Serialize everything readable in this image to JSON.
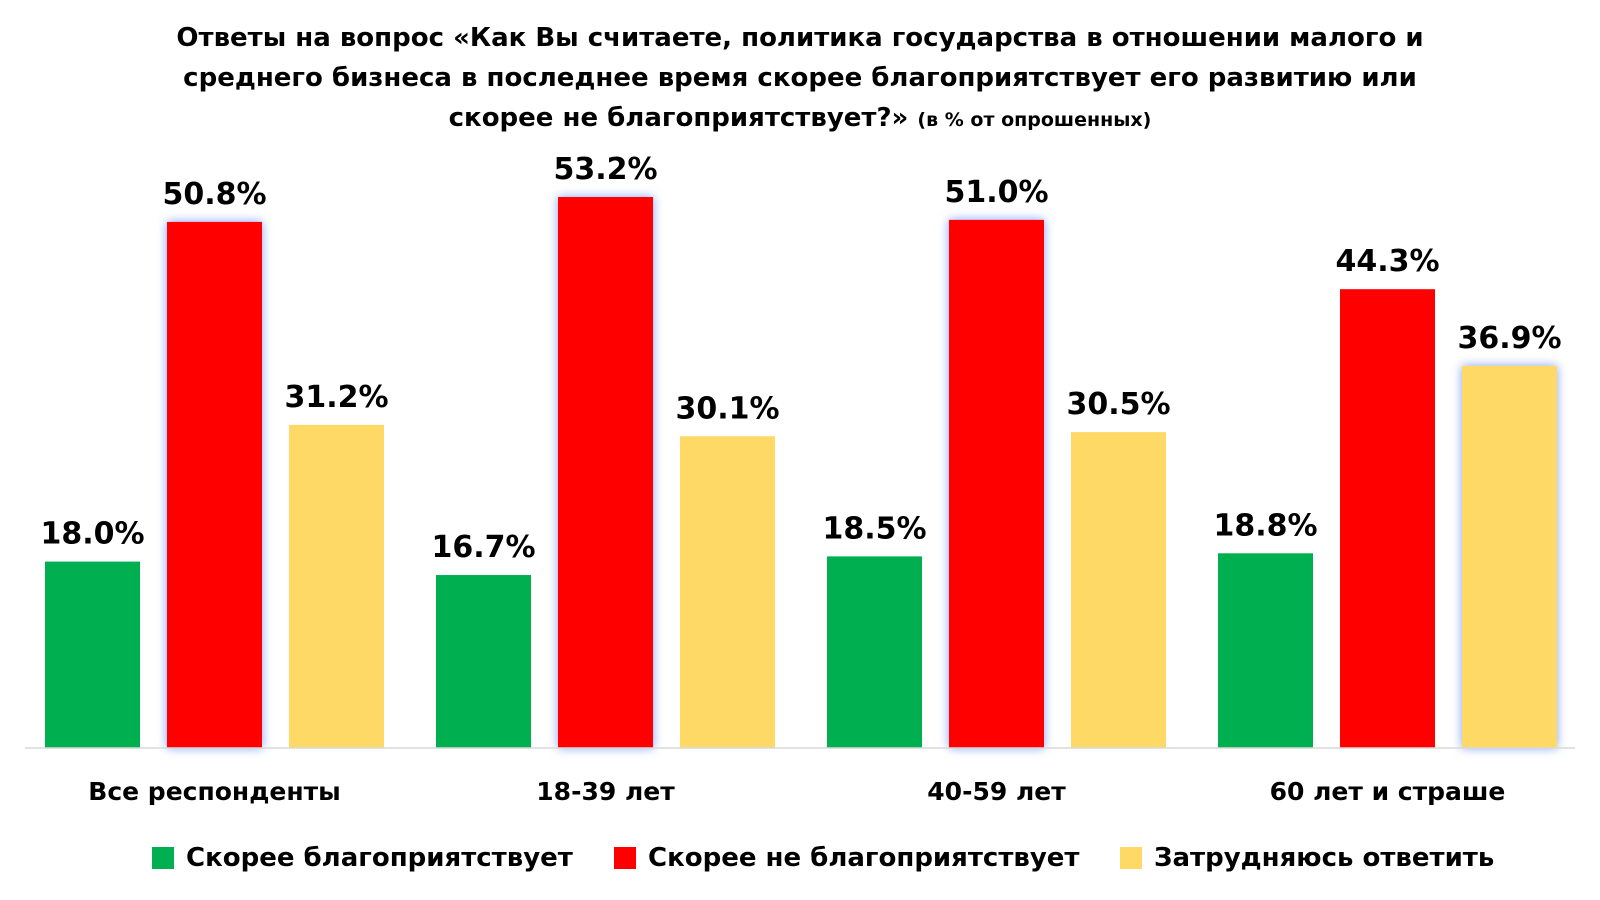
{
  "chart_data": {
    "type": "bar",
    "title": "Ответы на вопрос «Как Вы считаете, политика государства в отношении малого и среднего бизнеса в последнее время скорее благоприятствует его развитию или скорее не благоприятствует?»",
    "subtitle": "(в % от опрошенных)",
    "categories": [
      "Все респонденты",
      "18-39 лет",
      "40-59 лет",
      "60 лет и страше"
    ],
    "series": [
      {
        "name": "Скорее благоприятствует",
        "color": "#00B050",
        "values": [
          18.0,
          16.7,
          18.5,
          18.8
        ]
      },
      {
        "name": "Скорее не благоприятствует",
        "color": "#FF0000",
        "values": [
          50.8,
          53.2,
          51.0,
          44.3
        ]
      },
      {
        "name": "Затрудняюсь ответить",
        "color": "#FFD966",
        "values": [
          31.2,
          30.1,
          30.5,
          36.9
        ]
      }
    ],
    "value_suffix": "%",
    "highlighted": [
      [
        1,
        0
      ],
      [
        1,
        1
      ],
      [
        1,
        2
      ],
      [
        2,
        3
      ]
    ],
    "ylim": [
      0,
      56
    ],
    "grid": false,
    "legend_position": "bottom"
  }
}
